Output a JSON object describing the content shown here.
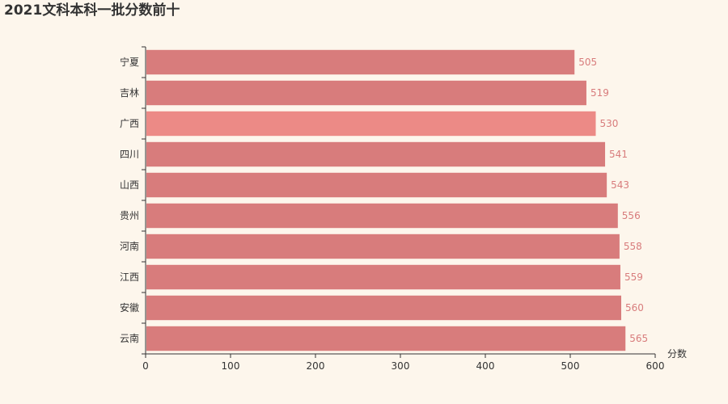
{
  "chart_data": {
    "type": "bar",
    "orientation": "horizontal",
    "title": "2021文科本科一批分数前十",
    "xlabel": "分数",
    "ylabel": "",
    "xlim": [
      0,
      600
    ],
    "x_ticks": [
      0,
      100,
      200,
      300,
      400,
      500,
      600
    ],
    "categories": [
      "宁夏",
      "吉林",
      "广西",
      "四川",
      "山西",
      "贵州",
      "河南",
      "江西",
      "安徽",
      "云南"
    ],
    "values": [
      505,
      519,
      530,
      541,
      543,
      556,
      558,
      559,
      560,
      565
    ],
    "highlighted_category": "广西",
    "grid": false,
    "legend": "none",
    "colors": {
      "bar": "#d87c7c",
      "bar_highlight": "#ec8a86",
      "value_label": "#d87c7c",
      "axis": "#333333",
      "background": "#fdf6ec"
    }
  }
}
